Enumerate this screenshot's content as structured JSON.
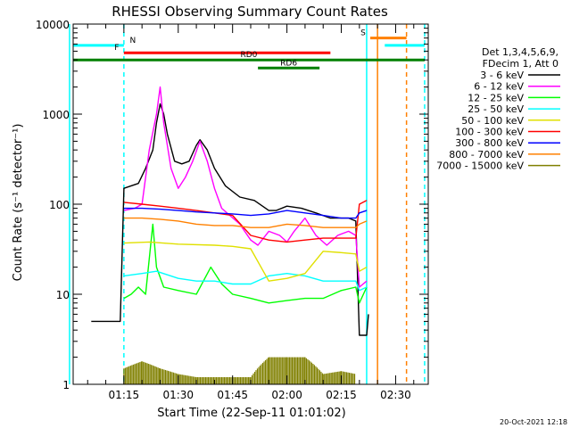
{
  "chart_data": {
    "type": "line",
    "title": "RHESSI Observing Summary Count Rates",
    "xlabel": "Start Time (22-Sep-11 01:01:02)",
    "ylabel": "Count Rate (s⁻¹ detector⁻¹)",
    "y_scale": "log",
    "ylim": [
      1,
      10000
    ],
    "xlim": [
      "01:01",
      "02:39"
    ],
    "x_tick_labels": [
      "01:15",
      "01:30",
      "01:45",
      "02:00",
      "02:15",
      "02:30"
    ],
    "y_tick_labels": [
      "1",
      "10",
      "100",
      "1000",
      "10000"
    ],
    "legend_header": [
      "Det 1,3,4,5,6,9,",
      "FDecim 1, Att 0"
    ],
    "legend_position": "right",
    "footer_date": "20-Oct-2021 12:18",
    "bars": [
      {
        "label": "N",
        "start": "01:01",
        "end": "01:15",
        "level": 5800,
        "color": "#00ffff"
      },
      {
        "label": "N",
        "start": "02:27",
        "end": "02:38",
        "level": 5800,
        "color": "#00ffff"
      },
      {
        "label": "F",
        "start": "01:15",
        "end": "02:12",
        "level": 4800,
        "color": "#ff0000"
      },
      {
        "label": "S",
        "start": "02:23",
        "end": "02:33",
        "level": 7000,
        "color": "#ff8000"
      },
      {
        "label": "RD0",
        "start": "01:01",
        "end": "02:38",
        "level": 4000,
        "color": "#008000"
      },
      {
        "label": "RD6",
        "start": "01:52",
        "end": "02:09",
        "level": 3250,
        "color": "#008000"
      }
    ],
    "vertical_lines": [
      {
        "time": "01:00",
        "color": "#00ffff",
        "style": "solid"
      },
      {
        "time": "01:15",
        "color": "#00ffff",
        "style": "dashed"
      },
      {
        "time": "02:22",
        "color": "#00ffff",
        "style": "solid"
      },
      {
        "time": "02:25",
        "color": "#ff8000",
        "style": "solid"
      },
      {
        "time": "02:33",
        "color": "#ff8000",
        "style": "dashed"
      },
      {
        "time": "02:38",
        "color": "#00ffff",
        "style": "dashed"
      }
    ],
    "series": [
      {
        "name": "3 - 6 keV",
        "color": "#000000",
        "points": [
          [
            "01:06",
            5
          ],
          [
            "01:14",
            5
          ],
          [
            "01:15",
            150
          ],
          [
            "01:19",
            170
          ],
          [
            "01:21",
            250
          ],
          [
            "01:23",
            400
          ],
          [
            "01:24",
            800
          ],
          [
            "01:25",
            1300
          ],
          [
            "01:26",
            1000
          ],
          [
            "01:27",
            600
          ],
          [
            "01:29",
            300
          ],
          [
            "01:31",
            280
          ],
          [
            "01:33",
            300
          ],
          [
            "01:35",
            450
          ],
          [
            "01:36",
            520
          ],
          [
            "01:38",
            400
          ],
          [
            "01:40",
            250
          ],
          [
            "01:43",
            160
          ],
          [
            "01:47",
            120
          ],
          [
            "01:51",
            110
          ],
          [
            "01:55",
            85
          ],
          [
            "01:57",
            85
          ],
          [
            "02:00",
            95
          ],
          [
            "02:04",
            90
          ],
          [
            "02:08",
            80
          ],
          [
            "02:12",
            70
          ],
          [
            "02:17",
            70
          ],
          [
            "02:19",
            65
          ],
          [
            "02:20",
            3.5
          ],
          [
            "02:22",
            3.5
          ],
          [
            "02:22.5",
            6
          ]
        ]
      },
      {
        "name": "6 - 12 keV",
        "color": "#ff00ff",
        "points": [
          [
            "01:15",
            85
          ],
          [
            "01:18",
            90
          ],
          [
            "01:20",
            100
          ],
          [
            "01:22",
            400
          ],
          [
            "01:24",
            1000
          ],
          [
            "01:25",
            2000
          ],
          [
            "01:26",
            800
          ],
          [
            "01:28",
            250
          ],
          [
            "01:30",
            150
          ],
          [
            "01:32",
            200
          ],
          [
            "01:34",
            300
          ],
          [
            "01:36",
            500
          ],
          [
            "01:38",
            300
          ],
          [
            "01:40",
            150
          ],
          [
            "01:42",
            90
          ],
          [
            "01:47",
            60
          ],
          [
            "01:50",
            40
          ],
          [
            "01:52",
            35
          ],
          [
            "01:55",
            50
          ],
          [
            "01:58",
            45
          ],
          [
            "02:00",
            38
          ],
          [
            "02:02",
            50
          ],
          [
            "02:05",
            70
          ],
          [
            "02:08",
            45
          ],
          [
            "02:11",
            35
          ],
          [
            "02:14",
            45
          ],
          [
            "02:17",
            50
          ],
          [
            "02:19",
            45
          ],
          [
            "02:20",
            12
          ],
          [
            "02:22",
            14
          ]
        ]
      },
      {
        "name": "12 - 25 keV",
        "color": "#00ff00",
        "points": [
          [
            "01:15",
            9
          ],
          [
            "01:17",
            10
          ],
          [
            "01:19",
            12
          ],
          [
            "01:21",
            10
          ],
          [
            "01:23",
            60
          ],
          [
            "01:24",
            20
          ],
          [
            "01:26",
            12
          ],
          [
            "01:30",
            11
          ],
          [
            "01:35",
            10
          ],
          [
            "01:39",
            20
          ],
          [
            "01:42",
            13
          ],
          [
            "01:45",
            10
          ],
          [
            "01:50",
            9
          ],
          [
            "01:55",
            8
          ],
          [
            "02:00",
            8.5
          ],
          [
            "02:05",
            9
          ],
          [
            "02:10",
            9
          ],
          [
            "02:15",
            11
          ],
          [
            "02:19",
            12
          ],
          [
            "02:20",
            8
          ],
          [
            "02:22",
            12
          ]
        ]
      },
      {
        "name": "25 - 50 keV",
        "color": "#00ffff",
        "points": [
          [
            "01:15",
            16
          ],
          [
            "01:20",
            17
          ],
          [
            "01:24",
            18
          ],
          [
            "01:30",
            15
          ],
          [
            "01:35",
            14
          ],
          [
            "01:40",
            14
          ],
          [
            "01:45",
            13
          ],
          [
            "01:50",
            13
          ],
          [
            "01:55",
            16
          ],
          [
            "02:00",
            17
          ],
          [
            "02:05",
            16
          ],
          [
            "02:10",
            14
          ],
          [
            "02:15",
            14
          ],
          [
            "02:19",
            14
          ],
          [
            "02:20",
            11
          ],
          [
            "02:22",
            12
          ]
        ]
      },
      {
        "name": "50 - 100 keV",
        "color": "#e0e000",
        "points": [
          [
            "01:15",
            37
          ],
          [
            "01:22",
            38
          ],
          [
            "01:30",
            36
          ],
          [
            "01:40",
            35
          ],
          [
            "01:45",
            34
          ],
          [
            "01:50",
            32
          ],
          [
            "01:55",
            14
          ],
          [
            "02:00",
            15
          ],
          [
            "02:05",
            17
          ],
          [
            "02:10",
            30
          ],
          [
            "02:15",
            29
          ],
          [
            "02:19",
            28
          ],
          [
            "02:20",
            18
          ],
          [
            "02:22",
            20
          ]
        ]
      },
      {
        "name": "100 - 300 keV",
        "color": "#ff0000",
        "points": [
          [
            "01:15",
            105
          ],
          [
            "01:20",
            100
          ],
          [
            "01:25",
            95
          ],
          [
            "01:30",
            90
          ],
          [
            "01:35",
            85
          ],
          [
            "01:40",
            80
          ],
          [
            "01:45",
            75
          ],
          [
            "01:50",
            45
          ],
          [
            "01:55",
            40
          ],
          [
            "02:00",
            38
          ],
          [
            "02:05",
            40
          ],
          [
            "02:10",
            42
          ],
          [
            "02:15",
            42
          ],
          [
            "02:19",
            42
          ],
          [
            "02:20",
            100
          ],
          [
            "02:22",
            110
          ]
        ]
      },
      {
        "name": "300 - 800 keV",
        "color": "#0000ff",
        "points": [
          [
            "01:15",
            90
          ],
          [
            "01:20",
            90
          ],
          [
            "01:25",
            88
          ],
          [
            "01:30",
            85
          ],
          [
            "01:35",
            82
          ],
          [
            "01:40",
            80
          ],
          [
            "01:45",
            78
          ],
          [
            "01:50",
            75
          ],
          [
            "01:55",
            78
          ],
          [
            "02:00",
            85
          ],
          [
            "02:05",
            80
          ],
          [
            "02:10",
            75
          ],
          [
            "02:15",
            70
          ],
          [
            "02:19",
            70
          ],
          [
            "02:20",
            80
          ],
          [
            "02:22",
            85
          ]
        ]
      },
      {
        "name": "800 - 7000 keV",
        "color": "#ff8000",
        "points": [
          [
            "01:15",
            70
          ],
          [
            "01:20",
            70
          ],
          [
            "01:25",
            68
          ],
          [
            "01:30",
            65
          ],
          [
            "01:35",
            60
          ],
          [
            "01:40",
            58
          ],
          [
            "01:45",
            58
          ],
          [
            "01:50",
            55
          ],
          [
            "01:55",
            55
          ],
          [
            "02:00",
            60
          ],
          [
            "02:05",
            58
          ],
          [
            "02:10",
            55
          ],
          [
            "02:15",
            55
          ],
          [
            "02:19",
            55
          ],
          [
            "02:20",
            60
          ],
          [
            "02:22",
            65
          ]
        ]
      },
      {
        "name": "7000 - 15000 keV",
        "color": "#808000",
        "points": [
          [
            "01:15",
            1.5
          ],
          [
            "01:20",
            1.8
          ],
          [
            "01:25",
            1.5
          ],
          [
            "01:30",
            1.3
          ],
          [
            "01:35",
            1.2
          ],
          [
            "01:50",
            1.2
          ],
          [
            "01:55",
            2
          ],
          [
            "02:00",
            2
          ],
          [
            "02:05",
            2
          ],
          [
            "02:10",
            1.3
          ],
          [
            "02:15",
            1.4
          ],
          [
            "02:19",
            1.3
          ]
        ]
      }
    ]
  }
}
